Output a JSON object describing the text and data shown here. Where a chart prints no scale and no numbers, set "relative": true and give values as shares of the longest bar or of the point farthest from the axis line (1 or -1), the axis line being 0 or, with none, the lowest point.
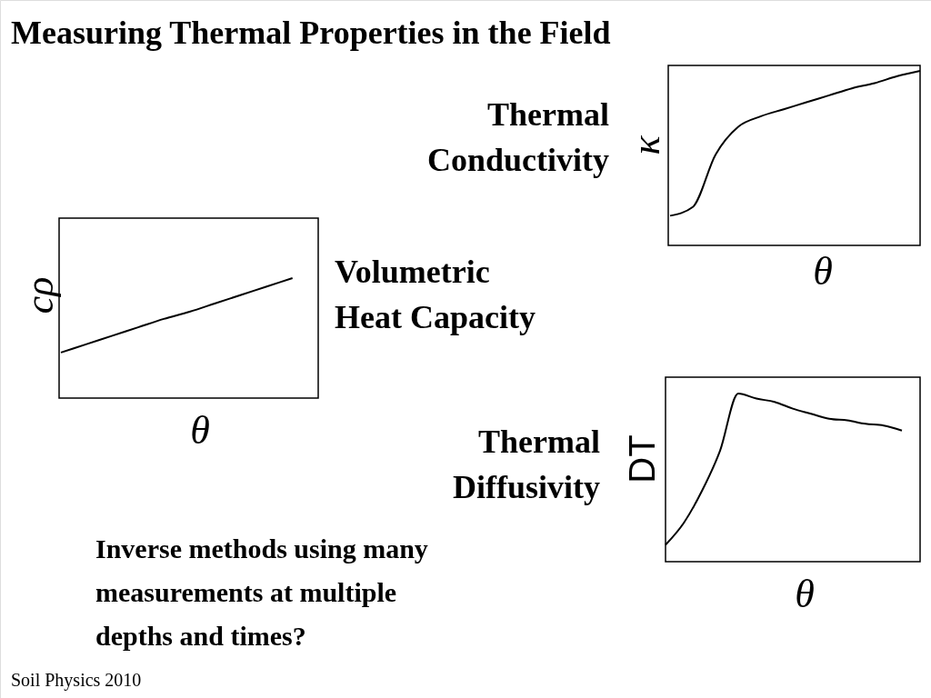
{
  "chart_data": [
    {
      "type": "other",
      "title": "Measuring Thermal Properties in the Field",
      "annotations": [
        "Inverse methods using many measurements at multiple depths and times?",
        "Soil Physics 2010"
      ]
    },
    {
      "type": "line",
      "title": "Thermal Conductivity",
      "xlabel": "θ",
      "ylabel": "κ",
      "relative": true,
      "color": "#000000",
      "categories": [
        null,
        null,
        null,
        null,
        null,
        null,
        null,
        null,
        null,
        null,
        null,
        null
      ],
      "values": [
        0.17,
        0.22,
        0.52,
        0.68,
        0.74,
        0.78,
        0.82,
        0.86,
        0.9,
        0.93,
        0.97,
        1.0
      ]
    },
    {
      "type": "line",
      "title": "Volumetric Heat Capacity",
      "xlabel": "θ",
      "ylabel": "cρ",
      "relative": true,
      "color": "#000000",
      "categories": [
        null,
        null,
        null,
        null,
        null,
        null,
        null,
        null,
        null,
        null,
        null
      ],
      "values": [
        0.38,
        0.45,
        0.52,
        0.59,
        0.66,
        0.72,
        0.79,
        0.86,
        0.93,
        1.0,
        null
      ]
    },
    {
      "type": "line",
      "title": "Thermal Diffusivity",
      "xlabel": "θ",
      "ylabel": "DT",
      "relative": true,
      "color": "#000000",
      "categories": [
        null,
        null,
        null,
        null,
        null,
        null,
        null,
        null,
        null,
        null,
        null,
        null,
        null,
        null,
        null
      ],
      "values": [
        0.1,
        0.23,
        0.42,
        0.66,
        1.0,
        0.97,
        0.95,
        0.91,
        0.88,
        0.85,
        0.84,
        0.82,
        0.81,
        0.78,
        null
      ]
    }
  ]
}
